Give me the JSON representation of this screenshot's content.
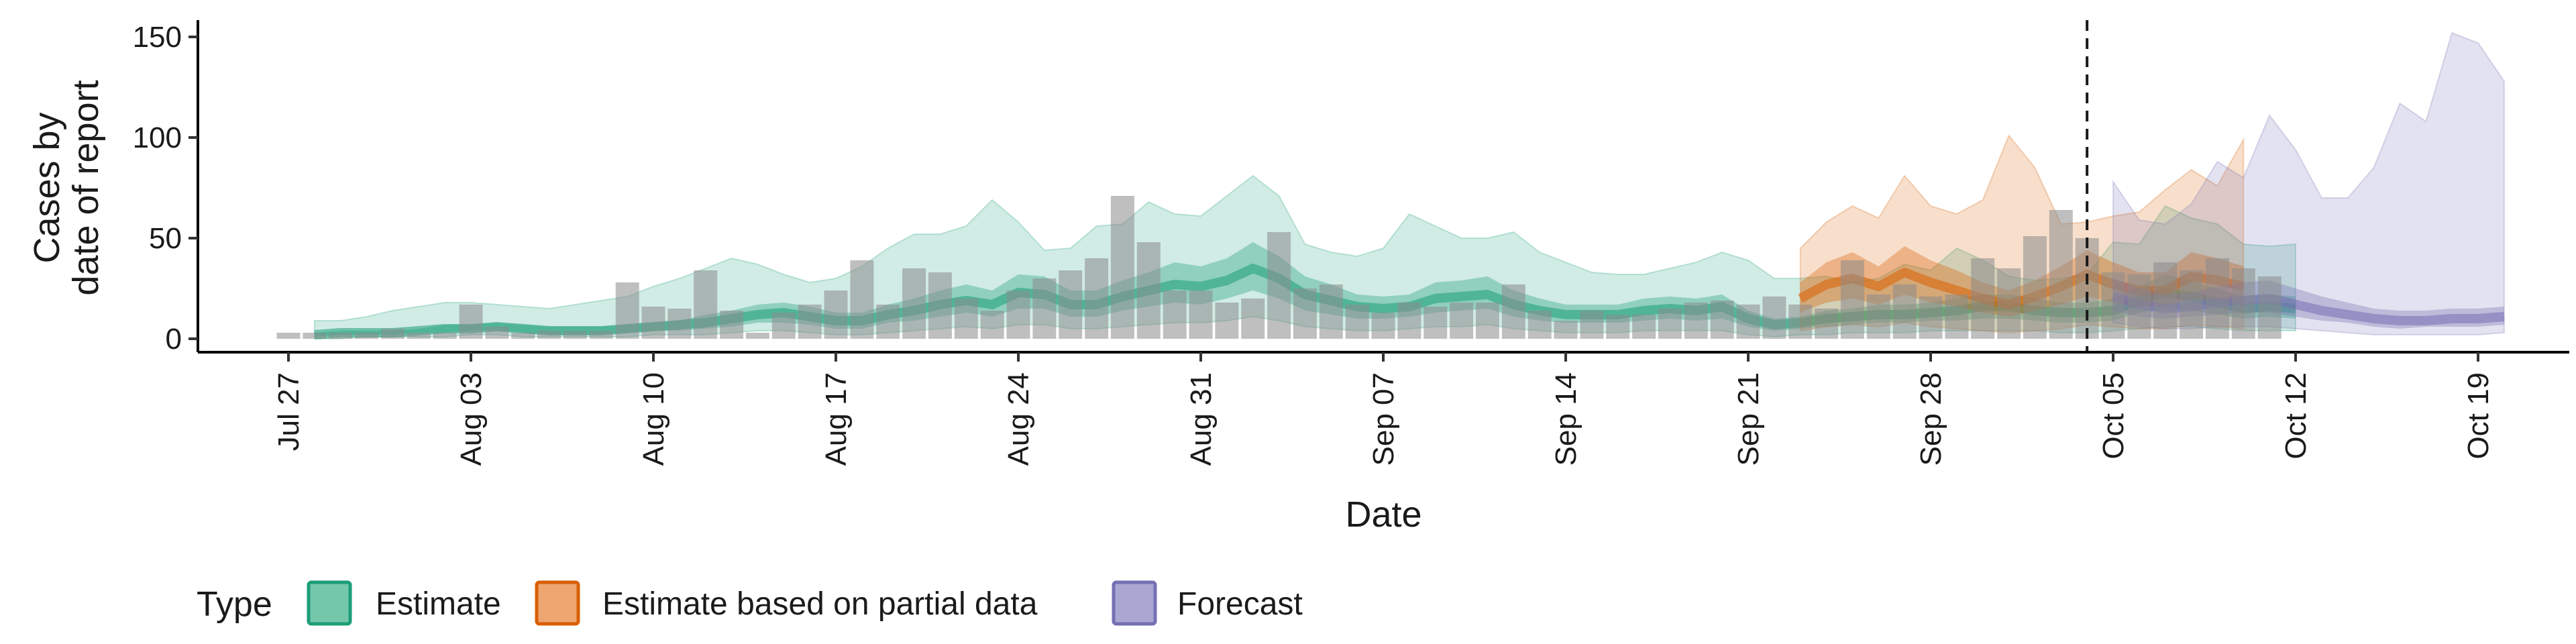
{
  "chart_data": {
    "type": "area",
    "title": "",
    "xlabel": "Date",
    "ylabel_lines": [
      "Cases by",
      "date of report"
    ],
    "ylim": [
      0,
      158
    ],
    "yticks": [
      0,
      50,
      100,
      150
    ],
    "x_start": "2020-07-27",
    "xticks": [
      "Jul 27",
      "Aug 03",
      "Aug 10",
      "Aug 17",
      "Aug 24",
      "Aug 31",
      "Sep 07",
      "Sep 14",
      "Sep 21",
      "Sep 28",
      "Oct 05",
      "Oct 12",
      "Oct 19"
    ],
    "xlim_days": [
      -1,
      86
    ],
    "vline_day": 69,
    "grid": false,
    "legend": {
      "title": "Type",
      "placement": "bottom",
      "entries": [
        {
          "label": "Estimate",
          "fill": "#75c7ab",
          "stroke": "#1b9e77"
        },
        {
          "label": "Estimate based on partial data",
          "fill": "#eea670",
          "stroke": "#d95f02"
        },
        {
          "label": "Forecast",
          "fill": "#aaa8d3",
          "stroke": "#7570b3"
        }
      ]
    },
    "colors": {
      "estimate": "#1b9e77",
      "partial": "#d95f02",
      "forecast": "#7570b3",
      "bars": "#8a8a8a",
      "vline": "#1a1a1a"
    },
    "observed_cases": {
      "start_day": 0,
      "values": [
        3,
        3,
        3,
        3,
        5,
        3,
        3,
        17,
        6,
        3,
        4,
        4,
        4,
        28,
        16,
        15,
        34,
        14,
        3,
        13,
        17,
        24,
        39,
        17,
        35,
        33,
        20,
        14,
        24,
        30,
        34,
        40,
        71,
        48,
        24,
        24,
        18,
        20,
        53,
        25,
        27,
        17,
        13,
        18,
        16,
        18,
        18,
        27,
        14,
        9,
        14,
        12,
        12,
        15,
        18,
        19,
        17,
        21,
        17,
        15,
        39,
        22,
        27,
        21,
        22,
        40,
        35,
        51,
        64,
        50,
        33,
        32,
        38,
        34,
        40,
        35,
        31
      ]
    },
    "estimate": {
      "start_day": 1,
      "median": [
        2,
        3,
        3,
        3,
        4,
        5,
        5,
        6,
        5,
        4,
        4,
        4,
        5,
        6,
        7,
        8,
        10,
        12,
        13,
        11,
        9,
        9,
        12,
        14,
        17,
        19,
        17,
        23,
        22,
        17,
        17,
        21,
        24,
        27,
        26,
        29,
        35,
        30,
        22,
        19,
        16,
        15,
        16,
        20,
        21,
        22,
        17,
        14,
        12,
        12,
        12,
        14,
        15,
        14,
        16,
        10,
        7,
        8,
        10,
        11,
        12,
        12,
        13,
        14,
        16,
        16,
        14,
        13,
        13,
        14,
        19,
        23,
        21,
        18,
        15,
        16,
        15
      ],
      "lower50": [
        1,
        2,
        2,
        2,
        3,
        3,
        4,
        4,
        3,
        2,
        2,
        2,
        3,
        4,
        4,
        5,
        6,
        8,
        8,
        7,
        5,
        5,
        8,
        9,
        11,
        13,
        11,
        15,
        15,
        11,
        11,
        14,
        16,
        18,
        17,
        20,
        24,
        20,
        14,
        12,
        10,
        10,
        11,
        13,
        14,
        15,
        11,
        9,
        8,
        8,
        8,
        9,
        10,
        9,
        10,
        6,
        4,
        5,
        6,
        7,
        8,
        8,
        9,
        9,
        10,
        10,
        9,
        8,
        8,
        9,
        13,
        15,
        14,
        12,
        10,
        11,
        10
      ],
      "upper50": [
        3,
        4,
        4,
        4,
        5,
        7,
        7,
        8,
        7,
        6,
        6,
        6,
        7,
        8,
        9,
        12,
        14,
        17,
        18,
        16,
        13,
        13,
        17,
        20,
        24,
        27,
        24,
        32,
        31,
        24,
        24,
        29,
        33,
        38,
        36,
        40,
        48,
        41,
        31,
        27,
        22,
        21,
        22,
        28,
        29,
        31,
        24,
        20,
        17,
        17,
        17,
        20,
        21,
        20,
        22,
        14,
        10,
        11,
        14,
        15,
        17,
        17,
        18,
        20,
        22,
        22,
        20,
        18,
        18,
        20,
        26,
        32,
        29,
        25,
        21,
        22,
        21
      ],
      "lower90": [
        0,
        0,
        1,
        1,
        1,
        1,
        2,
        2,
        1,
        1,
        1,
        1,
        1,
        2,
        2,
        2,
        3,
        4,
        4,
        3,
        2,
        2,
        3,
        4,
        5,
        6,
        5,
        7,
        7,
        5,
        5,
        6,
        7,
        8,
        8,
        9,
        11,
        9,
        6,
        5,
        4,
        4,
        5,
        6,
        6,
        7,
        5,
        4,
        3,
        3,
        3,
        4,
        4,
        4,
        4,
        2,
        1,
        2,
        2,
        3,
        3,
        3,
        4,
        4,
        4,
        4,
        4,
        3,
        3,
        4,
        5,
        6,
        6,
        5,
        4,
        4,
        4
      ],
      "upper90": [
        9,
        9,
        11,
        14,
        16,
        18,
        18,
        17,
        16,
        15,
        17,
        19,
        21,
        26,
        30,
        35,
        40,
        37,
        32,
        28,
        30,
        36,
        45,
        52,
        52,
        56,
        69,
        58,
        44,
        45,
        56,
        57,
        68,
        62,
        61,
        71,
        81,
        71,
        47,
        43,
        41,
        45,
        62,
        56,
        50,
        50,
        53,
        43,
        38,
        33,
        32,
        32,
        35,
        38,
        43,
        39,
        30,
        30,
        31,
        28,
        30,
        37,
        34,
        45,
        39,
        31,
        29,
        30,
        32,
        48,
        47,
        66,
        60,
        57,
        47,
        46,
        47
      ]
    },
    "partial": {
      "start_day": 58,
      "median": [
        20,
        27,
        30,
        26,
        33,
        28,
        24,
        20,
        17,
        21,
        26,
        32,
        27,
        24,
        24,
        31,
        29,
        26
      ],
      "lower50": [
        13,
        18,
        20,
        17,
        22,
        18,
        16,
        13,
        11,
        14,
        17,
        21,
        18,
        16,
        16,
        20,
        19,
        17
      ],
      "upper50": [
        28,
        38,
        43,
        36,
        46,
        39,
        34,
        28,
        24,
        29,
        36,
        44,
        38,
        33,
        33,
        43,
        40,
        36
      ],
      "lower90": [
        4,
        6,
        7,
        6,
        8,
        6,
        5,
        4,
        3,
        4,
        5,
        7,
        6,
        5,
        5,
        7,
        6,
        5
      ],
      "upper90": [
        45,
        58,
        66,
        60,
        81,
        66,
        62,
        69,
        101,
        85,
        57,
        58,
        61,
        63,
        74,
        84,
        76,
        99
      ]
    },
    "forecast": {
      "start_day": 70,
      "median": [
        21,
        17,
        15,
        16,
        18,
        19,
        20,
        17,
        14,
        12,
        10,
        9,
        9,
        10,
        10,
        11
      ],
      "lower50": [
        14,
        11,
        10,
        11,
        12,
        13,
        13,
        11,
        9,
        8,
        6,
        5,
        6,
        6,
        6,
        7
      ],
      "upper50": [
        30,
        25,
        22,
        23,
        26,
        28,
        29,
        25,
        21,
        18,
        15,
        14,
        14,
        15,
        15,
        16
      ],
      "lower90": [
        8,
        6,
        5,
        5,
        6,
        6,
        6,
        5,
        4,
        3,
        2,
        2,
        2,
        2,
        2,
        3
      ],
      "upper90": [
        78,
        59,
        57,
        67,
        88,
        80,
        111,
        94,
        70,
        70,
        85,
        117,
        108,
        152,
        147,
        128
      ]
    }
  }
}
